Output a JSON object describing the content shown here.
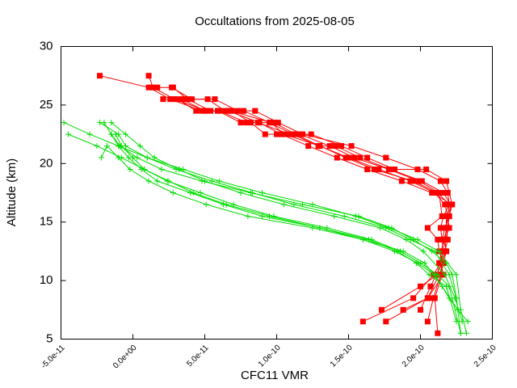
{
  "chart_data": {
    "type": "line",
    "title": "Occultations from 2025-08-05",
    "xlabel": "CFC11 VMR",
    "ylabel": "Altitude (km)",
    "xlim": [
      -5e-11,
      2.5e-10
    ],
    "ylim": [
      5,
      30
    ],
    "xticks": [
      "-5.0e-11",
      "0.0e+00",
      "5.0e-11",
      "1.0e-10",
      "1.5e-10",
      "2.0e-10",
      "2.5e-10"
    ],
    "yticks": [
      "5",
      "10",
      "15",
      "20",
      "25",
      "30"
    ],
    "grid": false,
    "legend": "none",
    "series_styles": [
      {
        "color": "#ff0000",
        "marker": "square"
      },
      {
        "color": "#00dd00",
        "marker": "plus"
      }
    ],
    "series": [
      {
        "style": 0,
        "x": [
          -2.3e-11,
          1.1e-11,
          2.6e-11,
          4.8e-11,
          6.8e-11,
          9.6e-11,
          1.05e-10,
          1.3e-10,
          1.48e-10,
          1.68e-10,
          1.95e-10,
          2.12e-10,
          2.2e-10,
          2.16e-10,
          2.14e-10,
          2.15e-10,
          2.16e-10,
          2.14e-10,
          2.09e-10,
          1.95e-10,
          1.6e-10
        ],
        "y": [
          27.5,
          26.5,
          25.5,
          24.5,
          24.5,
          23.5,
          22.5,
          21.5,
          20.5,
          19.5,
          18.5,
          17.5,
          16.5,
          15.5,
          14.5,
          13.5,
          12.5,
          11.5,
          10.5,
          8.5,
          6.5
        ]
      },
      {
        "style": 0,
        "x": [
          1.1e-11,
          1.4e-11,
          2.9e-11,
          5.1e-11,
          6.6e-11,
          8.8e-11,
          1.03e-10,
          1.22e-10,
          1.42e-10,
          1.63e-10,
          1.87e-10,
          2.08e-10,
          2.22e-10,
          2.18e-10,
          2.18e-10,
          2.17e-10,
          2.18e-10,
          2.16e-10,
          2.13e-10,
          2.05e-10,
          1.88e-10
        ],
        "y": [
          27.5,
          26.5,
          25.5,
          24.5,
          24.5,
          23.5,
          22.5,
          21.5,
          20.5,
          19.5,
          18.5,
          17.5,
          16.5,
          15.5,
          14.5,
          13.5,
          12.5,
          11.5,
          10.5,
          8.5,
          7.5
        ]
      },
      {
        "style": 0,
        "x": [
          1.7e-11,
          2.7e-11,
          4.1e-11,
          5.7e-11,
          7.3e-11,
          8.5e-11,
          1.01e-10,
          1.18e-10,
          1.52e-10,
          1.76e-10,
          1.98e-10,
          2.14e-10,
          2.19e-10,
          2.2e-10,
          2.19e-10,
          2.18e-10,
          2.19e-10,
          2.17e-10,
          2.15e-10,
          2.07e-10,
          2e-10
        ],
        "y": [
          26.5,
          26.5,
          25.5,
          25.5,
          24.5,
          24.5,
          23.5,
          22.5,
          21.5,
          20.5,
          19.5,
          18.5,
          17.5,
          16.5,
          15.5,
          14.5,
          13.5,
          12.5,
          11.5,
          9.5,
          7.5
        ]
      },
      {
        "style": 0,
        "x": [
          2.1e-11,
          3.4e-11,
          5e-11,
          6e-11,
          7.9e-11,
          9.8e-11,
          1.13e-10,
          1.3e-10,
          1.5e-10,
          1.71e-10,
          1.93e-10,
          2.1e-10,
          2.17e-10,
          2.19e-10,
          2.2e-10,
          2.17e-10,
          2.14e-10,
          2.14e-10,
          2.15e-10,
          2.1e-10,
          2.12e-10
        ],
        "y": [
          25.5,
          25.5,
          24.5,
          24.5,
          23.5,
          23.5,
          22.5,
          21.5,
          20.5,
          19.5,
          18.5,
          17.5,
          16.5,
          15.5,
          14.5,
          13.5,
          12.5,
          11.5,
          10.5,
          8.5,
          5.5
        ]
      },
      {
        "style": 0,
        "x": [
          2.8e-11,
          3.8e-11,
          5.4e-11,
          6.9e-11,
          8.2e-11,
          9.2e-11,
          1e-10,
          1.16e-10,
          1.37e-10,
          1.54e-10,
          1.78e-10,
          1.99e-10,
          2.13e-10,
          2.15e-10,
          2.05e-10,
          2.12e-10,
          2.13e-10,
          2.16e-10,
          2.14e-10,
          2.09e-10,
          2.05e-10
        ],
        "y": [
          26.5,
          25.5,
          24.5,
          24.5,
          23.5,
          22.5,
          22.5,
          22.5,
          21.5,
          20.5,
          19.5,
          18.5,
          17.5,
          15.5,
          14.5,
          13.5,
          12.5,
          11.5,
          10.5,
          8.5,
          6.5
        ]
      },
      {
        "style": 0,
        "x": [
          3.1e-11,
          4.4e-11,
          5.9e-11,
          7.5e-11,
          8.7e-11,
          1.09e-10,
          1.24e-10,
          1.45e-10,
          1.63e-10,
          1.82e-10,
          2.04e-10,
          2.18e-10,
          2.22e-10,
          2.2e-10,
          2.17e-10,
          2.15e-10,
          2.16e-10,
          2.13e-10,
          2.12e-10,
          2e-10,
          1.73e-10
        ],
        "y": [
          25.5,
          24.5,
          24.5,
          23.5,
          23.5,
          22.5,
          22.5,
          21.5,
          20.5,
          19.5,
          19.5,
          18.5,
          16.5,
          15.5,
          14.5,
          13.5,
          12.5,
          11.5,
          10.5,
          9.5,
          7.5
        ]
      },
      {
        "style": 0,
        "x": [
          3.6e-11,
          5.2e-11,
          6.4e-11,
          7.7e-11,
          9.5e-11,
          1.11e-10,
          1.29e-10,
          1.41e-10,
          1.58e-10,
          1.79e-10,
          2.01e-10,
          2.16e-10,
          2.21e-10,
          2.2e-10,
          2.19e-10,
          2.16e-10,
          2.18e-10,
          2.14e-10,
          2.16e-10,
          2.05e-10,
          1.76e-10
        ],
        "y": [
          25.5,
          25.5,
          24.5,
          24.5,
          23.5,
          22.5,
          21.5,
          21.5,
          20.5,
          19.5,
          18.5,
          17.5,
          16.5,
          15.5,
          14.5,
          13.5,
          12.5,
          11.5,
          10.5,
          8.5,
          6.5
        ]
      },
      {
        "style": 1,
        "x": [
          -4.8e-11,
          -3e-11,
          -1e-11,
          1e-11,
          3.5e-11,
          6e-11,
          9e-11,
          1.25e-10,
          1.55e-10,
          1.78e-10,
          1.98e-10,
          2.13e-10,
          2.25e-10,
          2.28e-10,
          2.32e-10
        ],
        "y": [
          23.5,
          22.5,
          21.5,
          20.5,
          19.5,
          18.5,
          17.5,
          16.5,
          15.5,
          14.5,
          13.5,
          12.5,
          10.5,
          7.5,
          5.5
        ]
      },
      {
        "style": 1,
        "x": [
          -4.5e-11,
          -2.5e-11,
          -8e-12,
          8e-12,
          2.5e-11,
          4.2e-11,
          6.5e-11,
          9.5e-11,
          1.3e-10,
          1.6e-10,
          1.88e-10,
          2.03e-10,
          2.15e-10,
          2.26e-10,
          2.33e-10
        ],
        "y": [
          22.5,
          21.5,
          20.5,
          19.5,
          18.5,
          17.5,
          16.5,
          15.5,
          14.5,
          13.5,
          12.5,
          11.5,
          9.5,
          7.5,
          6.5
        ]
      },
      {
        "style": 1,
        "x": [
          -2e-11,
          -1.5e-11,
          -9e-12,
          3e-12,
          2e-11,
          4.8e-11,
          8.2e-11,
          1.18e-10,
          1.57e-10,
          1.8e-10,
          1.95e-10,
          2.08e-10,
          2.18e-10,
          2.22e-10,
          2.25e-10
        ],
        "y": [
          23.5,
          22.5,
          21.5,
          20.5,
          19.5,
          18.5,
          17.5,
          16.5,
          15.5,
          14.5,
          13.5,
          12.5,
          11.5,
          10.5,
          8.5
        ]
      },
      {
        "style": 1,
        "x": [
          -2.3e-11,
          -1e-11,
          -5e-12,
          1e-11,
          3e-11,
          5.5e-11,
          8.3e-11,
          1.12e-10,
          1.47e-10,
          1.76e-10,
          1.93e-10,
          2.1e-10,
          2.2e-10,
          2.25e-10,
          2.28e-10
        ],
        "y": [
          23.5,
          22.5,
          21.5,
          20.5,
          19.5,
          18.5,
          17.5,
          16.5,
          15.5,
          14.5,
          13.5,
          12.5,
          10.5,
          8.5,
          5.5
        ]
      },
      {
        "style": 1,
        "x": [
          -1.5e-11,
          -5e-12,
          5e-12,
          1.5e-11,
          3.2e-11,
          5e-11,
          7.5e-11,
          1.05e-10,
          1.4e-10,
          1.72e-10,
          1.9e-10,
          2.02e-10,
          2.17e-10,
          2.24e-10,
          2.29e-10
        ],
        "y": [
          23.5,
          22.5,
          21.5,
          20.5,
          19.5,
          18.5,
          17.5,
          16.5,
          15.5,
          14.5,
          13.5,
          12.5,
          10.5,
          8.5,
          6.5
        ]
      },
      {
        "style": 1,
        "x": [
          -2.2e-11,
          -1.8e-11,
          -1e-11,
          -2e-12,
          1.1e-11,
          2.8e-11,
          5.1e-11,
          8e-11,
          1.25e-10,
          1.6e-10,
          1.82e-10,
          1.98e-10,
          2.1e-10,
          2.2e-10,
          2.26e-10
        ],
        "y": [
          20.5,
          21.5,
          20.5,
          19.5,
          18.5,
          17.5,
          16.5,
          15.5,
          14.5,
          13.5,
          12.5,
          11.5,
          10.5,
          8.5,
          7.5
        ]
      },
      {
        "style": 1,
        "x": [
          -1.2e-11,
          -8e-12,
          0.0,
          8e-12,
          2.4e-11,
          4.7e-11,
          7e-11,
          9.8e-11,
          1.35e-10,
          1.66e-10,
          1.86e-10,
          2e-10,
          2.12e-10,
          2.2e-10,
          2.28e-10
        ],
        "y": [
          22.5,
          21.5,
          20.5,
          19.5,
          18.5,
          17.5,
          16.5,
          15.5,
          14.5,
          13.5,
          12.5,
          11.5,
          10.5,
          9.5,
          5.5
        ]
      },
      {
        "style": 1,
        "x": [
          -1.5e-11,
          -1e-11,
          -3e-12,
          6e-12,
          1.7e-11,
          4e-11,
          6.3e-11,
          9e-11,
          1.3e-10,
          1.64e-10,
          1.84e-10,
          1.97e-10,
          2.06e-10,
          2.18e-10,
          2.25e-10
        ],
        "y": [
          22.5,
          21.5,
          20.5,
          19.5,
          18.5,
          17.5,
          16.5,
          15.5,
          14.5,
          13.5,
          12.5,
          11.5,
          10.5,
          9.5,
          6.5
        ]
      }
    ]
  }
}
